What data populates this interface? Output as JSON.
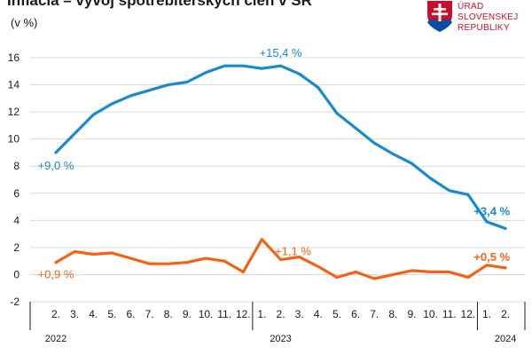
{
  "header": {
    "title": "Inflácia – vývoj spotrebiteľských cien v SR",
    "unit": "(v %)"
  },
  "logo": {
    "lines": [
      "ÚRAD",
      "SLOVENSKEJ",
      "REPUBLIKY"
    ],
    "colors": {
      "red": "#c8102e",
      "blue": "#0b4ea2",
      "white": "#ffffff"
    }
  },
  "chart_data": {
    "type": "line",
    "title": "Inflácia – vývoj spotrebiteľských cien v SR",
    "ylabel": "(v %)",
    "ylim": [
      -2,
      16
    ],
    "yticks": [
      -2,
      0,
      2,
      4,
      6,
      8,
      10,
      12,
      14,
      16
    ],
    "grid": true,
    "categories": [
      "2.",
      "3.",
      "4.",
      "5.",
      "6.",
      "7.",
      "8.",
      "9.",
      "10.",
      "11.",
      "12.",
      "1.",
      "2.",
      "3.",
      "4.",
      "5.",
      "6.",
      "7.",
      "8.",
      "9.",
      "10.",
      "11.",
      "12.",
      "1.",
      "2."
    ],
    "year_labels": [
      {
        "label": "2022",
        "at_index": 0
      },
      {
        "label": "2023",
        "at_index": 12
      },
      {
        "label": "2024",
        "at_index": 24
      }
    ],
    "year_separators_after_index": [
      10,
      22
    ],
    "series": [
      {
        "name": "blue",
        "color": "#1a8ac8",
        "values": [
          9.0,
          10.4,
          11.8,
          12.6,
          13.2,
          13.6,
          14.0,
          14.2,
          14.9,
          15.4,
          15.4,
          15.2,
          15.4,
          14.8,
          13.8,
          11.9,
          10.8,
          9.7,
          8.9,
          8.2,
          7.1,
          6.2,
          5.9,
          3.9,
          3.4
        ]
      },
      {
        "name": "orange",
        "color": "#f06418",
        "values": [
          0.9,
          1.7,
          1.5,
          1.6,
          1.2,
          0.8,
          0.8,
          0.9,
          1.2,
          1.0,
          0.2,
          2.6,
          1.1,
          1.3,
          0.6,
          -0.2,
          0.2,
          -0.3,
          0.0,
          0.3,
          0.2,
          0.2,
          -0.2,
          0.7,
          0.5
        ]
      }
    ],
    "annotations": [
      {
        "text": "+9,0 %",
        "series": 0,
        "index": 0,
        "bold": false,
        "color": "#1a8ac8"
      },
      {
        "text": "+15,4 %",
        "series": 0,
        "index": 12,
        "bold": false,
        "color": "#1a8ac8"
      },
      {
        "text": "+3,4 %",
        "series": 0,
        "index": 24,
        "bold": true,
        "color": "#1a8ac8"
      },
      {
        "text": "+0,9 %",
        "series": 1,
        "index": 0,
        "bold": false,
        "color": "#f06418"
      },
      {
        "text": "+1,1 %",
        "series": 1,
        "index": 12,
        "bold": false,
        "color": "#f06418"
      },
      {
        "text": "+0,5 %",
        "series": 1,
        "index": 24,
        "bold": true,
        "color": "#f06418"
      }
    ]
  }
}
